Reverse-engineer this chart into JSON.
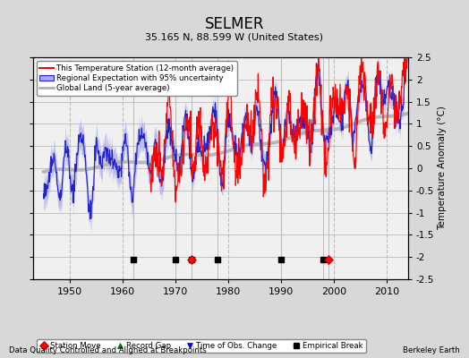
{
  "title": "SELMER",
  "subtitle": "35.165 N, 88.599 W (United States)",
  "ylabel": "Temperature Anomaly (°C)",
  "xlabel_left": "Data Quality Controlled and Aligned at Breakpoints",
  "xlabel_right": "Berkeley Earth",
  "ylim": [
    -2.5,
    2.5
  ],
  "xlim": [
    1943,
    2014
  ],
  "yticks": [
    -2.5,
    -2,
    -1.5,
    -1,
    -0.5,
    0,
    0.5,
    1,
    1.5,
    2,
    2.5
  ],
  "xticks": [
    1950,
    1960,
    1970,
    1980,
    1990,
    2000,
    2010
  ],
  "bg_color": "#d8d8d8",
  "plot_bg_color": "#f0f0f0",
  "station_move_years": [
    1973,
    1999
  ],
  "empirical_break_years": [
    1962,
    1970,
    1973,
    1978,
    1990,
    1998
  ],
  "marker_y": -2.05,
  "legend_labels": [
    "This Temperature Station (12-month average)",
    "Regional Expectation with 95% uncertainty",
    "Global Land (5-year average)"
  ],
  "line_colors": [
    "red",
    "#2222cc",
    "#b0b0b0"
  ],
  "uncertainty_color": "#aaaaee",
  "grid_color": "#bbbbbb",
  "station_active_start": 1965,
  "regional_active_start": 1945
}
